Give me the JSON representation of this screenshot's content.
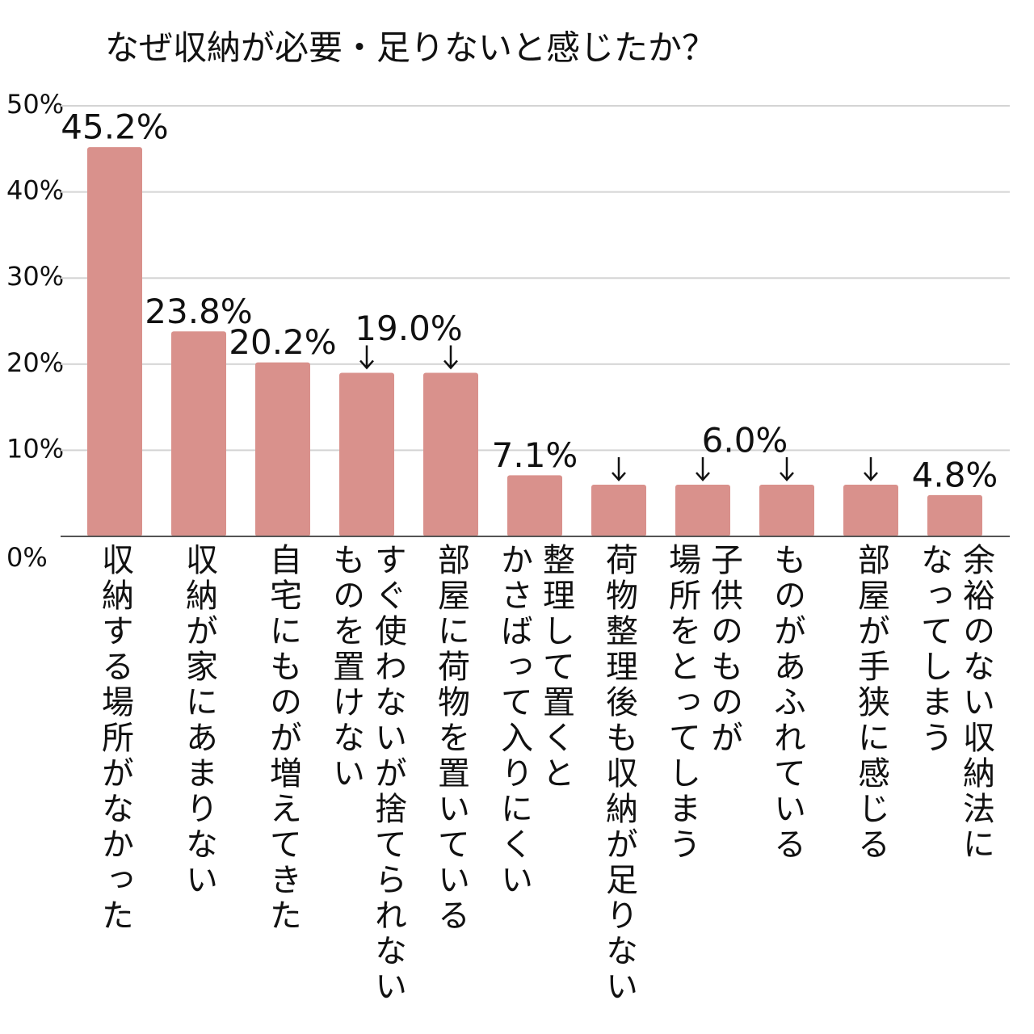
{
  "chart_data": {
    "type": "bar",
    "title": "なぜ収納が必要・足りないと感じたか？",
    "categories": [
      "収納する場所がなかった",
      "収納が家にあまりない",
      "自宅にものが増えてきた",
      "すぐ使わないが捨てられない\nものを置けない",
      "部屋に荷物を置いている",
      "整理して置くと\nかさばって入りにくい",
      "荷物整理後も収納が足りない",
      "子供のものが\n場所をとってしまう",
      "ものがあふれている",
      "部屋が手狭に感じる",
      "余裕のない収納法に\nなってしまう"
    ],
    "values": [
      45.2,
      23.8,
      20.2,
      19.0,
      19.0,
      7.1,
      6.0,
      6.0,
      6.0,
      6.0,
      4.8
    ],
    "value_labels": [
      "45.2%",
      "23.8%",
      "20.2%",
      "19.0%",
      null,
      "7.1%",
      null,
      "6.0%",
      null,
      null,
      "4.8%"
    ],
    "color": "#d9918c",
    "ylim": [
      0,
      50
    ],
    "yticks": [
      {
        "value": 0,
        "label": "0%"
      },
      {
        "value": 10,
        "label": "10%"
      },
      {
        "value": 20,
        "label": "20%"
      },
      {
        "value": 30,
        "label": "30%"
      },
      {
        "value": 40,
        "label": "40%"
      },
      {
        "value": 50,
        "label": "50%"
      }
    ],
    "grid": true
  }
}
